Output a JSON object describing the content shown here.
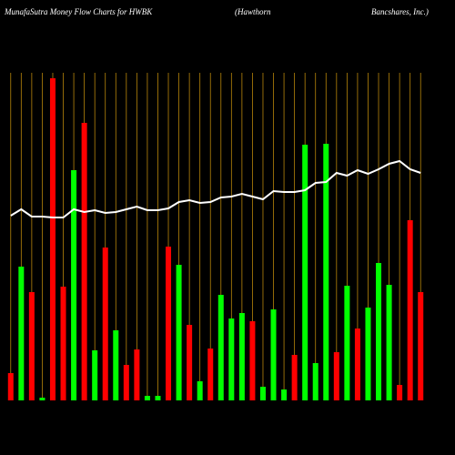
{
  "chart_data": {
    "type": "bar",
    "title": "MunafaSutra  Money Flow  Charts for HWBK",
    "subtitle": "(Hawthorn",
    "subtitle2": "Bancshares,  Inc.)",
    "categories": [
      null,
      null,
      null,
      null,
      null,
      null,
      null,
      null,
      null,
      null,
      null,
      null,
      null,
      null,
      null,
      null,
      null,
      null,
      null,
      null,
      null,
      null,
      null,
      null,
      null,
      null,
      null,
      null,
      null,
      null,
      null,
      null,
      null,
      null,
      null,
      null,
      null,
      null,
      null,
      null
    ],
    "values": [
      30,
      147,
      119,
      3,
      354,
      125,
      253,
      305,
      55,
      168,
      77,
      39,
      56,
      5,
      5,
      169,
      149,
      83,
      21,
      57,
      116,
      90,
      96,
      87,
      15,
      100,
      12,
      50,
      281,
      41,
      282,
      53,
      126,
      79,
      102,
      151,
      127,
      17,
      198,
      119
    ],
    "colors": [
      "#ff0000",
      "#00ff00",
      "#ff0000",
      "#00ff00",
      "#ff0000",
      "#ff0000",
      "#00ff00",
      "#ff0000",
      "#00ff00",
      "#ff0000",
      "#00ff00",
      "#ff0000",
      "#ff0000",
      "#00ff00",
      "#00ff00",
      "#ff0000",
      "#00ff00",
      "#ff0000",
      "#00ff00",
      "#ff0000",
      "#00ff00",
      "#00ff00",
      "#00ff00",
      "#ff0000",
      "#00ff00",
      "#00ff00",
      "#00ff00",
      "#ff0000",
      "#00ff00",
      "#00ff00",
      "#00ff00",
      "#ff0000",
      "#00ff00",
      "#ff0000",
      "#00ff00",
      "#00ff00",
      "#00ff00",
      "#ff0000",
      "#ff0000",
      "#ff0000"
    ],
    "line": {
      "color": "#ffffff",
      "values": [
        203,
        210,
        202,
        202,
        201,
        201,
        210,
        207,
        209,
        206,
        207,
        210,
        213,
        209,
        209,
        211,
        218,
        220,
        217,
        218,
        223,
        224,
        227,
        224,
        221,
        230,
        229,
        229,
        231,
        239,
        240,
        250,
        247,
        253,
        249,
        254,
        260,
        263,
        254,
        250
      ]
    },
    "ylim": [
      0,
      360
    ],
    "category_line_color": "#b8860b"
  }
}
